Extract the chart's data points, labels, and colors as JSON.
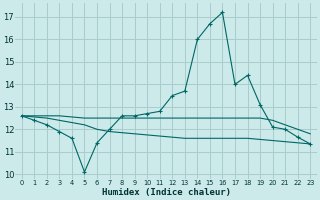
{
  "xlabel": "Humidex (Indice chaleur)",
  "bg_color": "#cceaea",
  "grid_color": "#aacccc",
  "line_color": "#006666",
  "xlim": [
    -0.5,
    23.5
  ],
  "ylim": [
    9.8,
    17.6
  ],
  "yticks": [
    10,
    11,
    12,
    13,
    14,
    15,
    16,
    17
  ],
  "xticks": [
    0,
    1,
    2,
    3,
    4,
    5,
    6,
    7,
    8,
    9,
    10,
    11,
    12,
    13,
    14,
    15,
    16,
    17,
    18,
    19,
    20,
    21,
    22,
    23
  ],
  "line1_x": [
    0,
    1,
    2,
    3,
    4,
    5,
    6,
    7,
    8,
    9,
    10,
    11,
    12,
    13,
    14,
    15,
    16,
    17,
    18,
    19,
    20,
    21,
    22,
    23
  ],
  "line1_y": [
    12.6,
    12.4,
    12.2,
    11.9,
    11.6,
    10.1,
    11.4,
    12.0,
    12.6,
    12.6,
    12.7,
    12.8,
    13.5,
    13.7,
    16.0,
    16.7,
    17.2,
    14.0,
    14.4,
    13.1,
    12.1,
    12.0,
    11.65,
    11.35
  ],
  "line2_x": [
    0,
    1,
    2,
    3,
    4,
    5,
    6,
    7,
    8,
    9,
    10,
    11,
    12,
    13,
    14,
    15,
    16,
    17,
    18,
    19,
    20,
    21,
    22,
    23
  ],
  "line2_y": [
    12.6,
    12.6,
    12.6,
    12.6,
    12.55,
    12.5,
    12.5,
    12.5,
    12.5,
    12.5,
    12.5,
    12.5,
    12.5,
    12.5,
    12.5,
    12.5,
    12.5,
    12.5,
    12.5,
    12.5,
    12.4,
    12.2,
    12.0,
    11.8
  ],
  "line3_x": [
    0,
    1,
    2,
    3,
    4,
    5,
    6,
    7,
    8,
    9,
    10,
    11,
    12,
    13,
    14,
    15,
    16,
    17,
    18,
    19,
    20,
    21,
    22,
    23
  ],
  "line3_y": [
    12.6,
    12.55,
    12.5,
    12.4,
    12.3,
    12.2,
    12.0,
    11.9,
    11.85,
    11.8,
    11.75,
    11.7,
    11.65,
    11.6,
    11.6,
    11.6,
    11.6,
    11.6,
    11.6,
    11.55,
    11.5,
    11.45,
    11.4,
    11.35
  ],
  "marker_x1": [
    0,
    1,
    2,
    3,
    4,
    5,
    6,
    7,
    8,
    9,
    10,
    11,
    12,
    13,
    14,
    15,
    16,
    17,
    18,
    19,
    20,
    21,
    22,
    23
  ],
  "marker_y1": [
    12.6,
    12.4,
    12.2,
    11.9,
    11.6,
    10.1,
    11.4,
    12.0,
    12.6,
    12.6,
    12.7,
    12.8,
    13.5,
    13.7,
    16.0,
    16.7,
    17.2,
    14.0,
    14.4,
    13.1,
    12.1,
    12.0,
    11.65,
    11.35
  ],
  "ytick_fontsize": 6.0,
  "xtick_fontsize": 4.8,
  "xlabel_fontsize": 6.5
}
